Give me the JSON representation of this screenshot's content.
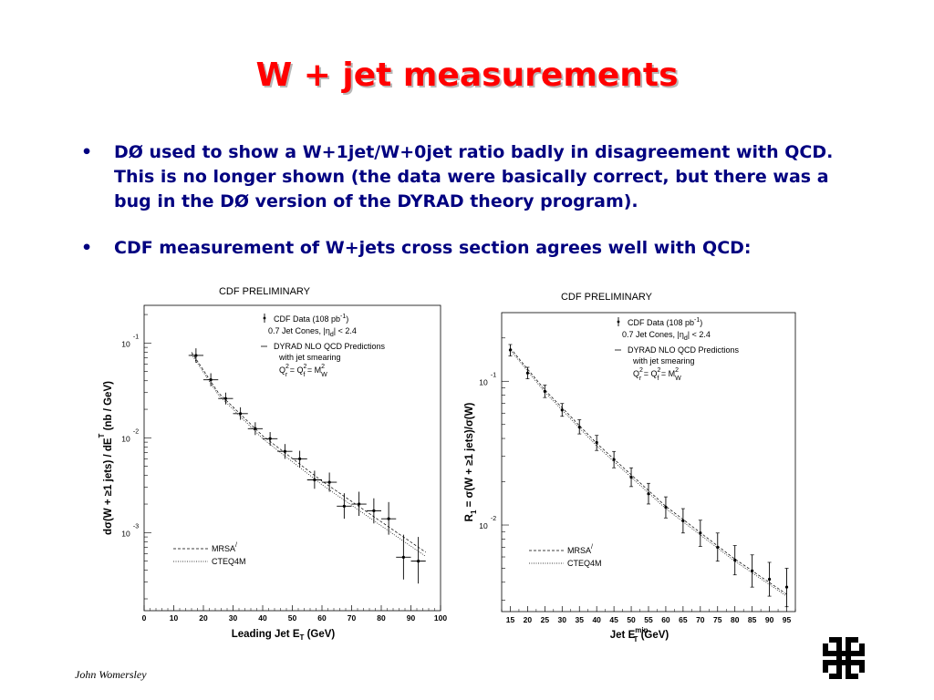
{
  "slide": {
    "title": "W + jet measurements",
    "bullets": [
      "DØ used to show a W+1jet/W+0jet ratio badly in disagreement with QCD.  This is no longer shown (the data were basically correct, but there was a bug in the DØ version of the DYRAD theory program).",
      "CDF measurement of W+jets cross section agrees well with QCD:"
    ],
    "bullet_symbol": "•",
    "footer": "John Womersley",
    "logo_icon": "fermilab-logo-icon",
    "title_color": "#ff0000",
    "text_color": "#000080"
  },
  "chart_data": [
    {
      "type": "scatter",
      "title": "CDF PRELIMINARY",
      "xlabel": "Leading Jet E",
      "xlabel_sub": "T",
      "xlabel_unit": "(GeV)",
      "ylabel": "dσ(W + ≥1 jets) / dE",
      "ylabel_sub": "T",
      "ylabel_unit": "(nb / GeV)",
      "log_y": true,
      "xlim": [
        0,
        100
      ],
      "ylim": [
        0.00015,
        0.25
      ],
      "x_ticks": [
        0,
        10,
        20,
        30,
        40,
        50,
        60,
        70,
        80,
        90,
        100
      ],
      "y_ticks": [
        {
          "value": 0.1,
          "base": "10",
          "exp": "-1"
        },
        {
          "value": 0.01,
          "base": "10",
          "exp": "-2"
        },
        {
          "value": 0.001,
          "base": "10",
          "exp": "-3"
        }
      ],
      "legend": {
        "data_label": "CDF Data (108 pb",
        "data_label_exp": "-1",
        "data_label_end": ")",
        "cones": "0.7 Jet Cones, |η",
        "cones_sub": "d",
        "cones_end": "| < 2.4",
        "theory": "DYRAD NLO QCD Predictions",
        "smearing": "with jet smearing",
        "scale": "Q",
        "scale_rest": "= Q",
        "scale_end": "= M",
        "scale_sub_r": "r",
        "scale_sub_f": "f",
        "scale_sub_w": "W",
        "scale_sup": "2"
      },
      "pdf_legend": [
        "MRSA",
        "CTEQ4M"
      ],
      "pdf_legend_prime": "/",
      "data": [
        {
          "x": 17.5,
          "y": 0.074,
          "xerr": 2.5,
          "ylo": 0.062,
          "yhi": 0.088
        },
        {
          "x": 22.5,
          "y": 0.041,
          "xerr": 2.5,
          "ylo": 0.035,
          "yhi": 0.048
        },
        {
          "x": 27.5,
          "y": 0.026,
          "xerr": 2.5,
          "ylo": 0.0225,
          "yhi": 0.03
        },
        {
          "x": 32.5,
          "y": 0.018,
          "xerr": 2.5,
          "ylo": 0.0155,
          "yhi": 0.021
        },
        {
          "x": 37.5,
          "y": 0.0125,
          "xerr": 2.5,
          "ylo": 0.0107,
          "yhi": 0.0146
        },
        {
          "x": 42.5,
          "y": 0.0098,
          "xerr": 2.5,
          "ylo": 0.0083,
          "yhi": 0.0115
        },
        {
          "x": 47.5,
          "y": 0.0072,
          "xerr": 2.5,
          "ylo": 0.006,
          "yhi": 0.0086
        },
        {
          "x": 52.5,
          "y": 0.006,
          "xerr": 2.5,
          "ylo": 0.0049,
          "yhi": 0.0073
        },
        {
          "x": 57.5,
          "y": 0.0036,
          "xerr": 2.5,
          "ylo": 0.0029,
          "yhi": 0.0045
        },
        {
          "x": 62.5,
          "y": 0.0034,
          "xerr": 2.5,
          "ylo": 0.0027,
          "yhi": 0.0043
        },
        {
          "x": 67.5,
          "y": 0.0019,
          "xerr": 2.5,
          "ylo": 0.0014,
          "yhi": 0.0026
        },
        {
          "x": 72.5,
          "y": 0.002,
          "xerr": 2.5,
          "ylo": 0.0015,
          "yhi": 0.0027
        },
        {
          "x": 77.5,
          "y": 0.0017,
          "xerr": 2.5,
          "ylo": 0.00125,
          "yhi": 0.0023
        },
        {
          "x": 82.5,
          "y": 0.0014,
          "xerr": 2.5,
          "ylo": 0.00095,
          "yhi": 0.0021
        },
        {
          "x": 87.5,
          "y": 0.00055,
          "xerr": 2.5,
          "ylo": 0.00032,
          "yhi": 0.00095
        },
        {
          "x": 92.5,
          "y": 0.0005,
          "xerr": 2.5,
          "ylo": 0.00029,
          "yhi": 0.0009
        }
      ],
      "theory_curves": [
        {
          "name": "MRSA",
          "style": "dashed",
          "x": [
            16,
            25,
            40,
            60,
            80,
            95
          ],
          "y": [
            0.08,
            0.03,
            0.0105,
            0.0035,
            0.0013,
            0.00062
          ]
        },
        {
          "name": "CTEQ4M",
          "style": "dotted",
          "x": [
            16,
            25,
            40,
            60,
            80,
            95
          ],
          "y": [
            0.076,
            0.0285,
            0.0098,
            0.0032,
            0.00118,
            0.00056
          ]
        }
      ]
    },
    {
      "type": "scatter",
      "title": "CDF PRELIMINARY",
      "xlabel": "Jet E",
      "xlabel_sub": "T",
      "xlabel_sup": "min",
      "xlabel_unit": "(GeV)",
      "ylabel": "R",
      "ylabel_sub": "1",
      "ylabel_rest": "= σ(W + ≥1 jets)/σ(W)",
      "log_y": true,
      "xlim": [
        12.5,
        97.5
      ],
      "ylim": [
        0.0025,
        0.3
      ],
      "x_ticks": [
        15,
        20,
        25,
        30,
        35,
        40,
        45,
        50,
        55,
        60,
        65,
        70,
        75,
        80,
        85,
        90,
        95
      ],
      "y_ticks": [
        {
          "value": 0.1,
          "base": "10",
          "exp": "-1"
        },
        {
          "value": 0.01,
          "base": "10",
          "exp": "-2"
        }
      ],
      "legend": {
        "data_label": "CDF Data (108 pb",
        "data_label_exp": "-1",
        "data_label_end": ")",
        "cones": "0.7 Jet Cones, |η",
        "cones_sub": "d",
        "cones_end": "| < 2.4",
        "theory": "DYRAD NLO QCD Predictions",
        "smearing": "with jet smearing",
        "scale": "Q",
        "scale_rest": "= Q",
        "scale_end": "= M",
        "scale_sub_r": "r",
        "scale_sub_f": "f",
        "scale_sub_w": "W",
        "scale_sup": "2"
      },
      "pdf_legend": [
        "MRSA",
        "CTEQ4M"
      ],
      "pdf_legend_prime": "/",
      "data": [
        {
          "x": 15,
          "y": 0.165,
          "ylo": 0.15,
          "yhi": 0.18
        },
        {
          "x": 20,
          "y": 0.114,
          "ylo": 0.104,
          "yhi": 0.125
        },
        {
          "x": 25,
          "y": 0.085,
          "ylo": 0.077,
          "yhi": 0.094
        },
        {
          "x": 30,
          "y": 0.063,
          "ylo": 0.057,
          "yhi": 0.07
        },
        {
          "x": 35,
          "y": 0.048,
          "ylo": 0.043,
          "yhi": 0.054
        },
        {
          "x": 40,
          "y": 0.0375,
          "ylo": 0.033,
          "yhi": 0.042
        },
        {
          "x": 45,
          "y": 0.0285,
          "ylo": 0.025,
          "yhi": 0.0325
        },
        {
          "x": 50,
          "y": 0.0215,
          "ylo": 0.0185,
          "yhi": 0.025
        },
        {
          "x": 55,
          "y": 0.0165,
          "ylo": 0.014,
          "yhi": 0.0195
        },
        {
          "x": 60,
          "y": 0.0133,
          "ylo": 0.0112,
          "yhi": 0.0157
        },
        {
          "x": 65,
          "y": 0.0107,
          "ylo": 0.0088,
          "yhi": 0.013
        },
        {
          "x": 70,
          "y": 0.0088,
          "ylo": 0.0071,
          "yhi": 0.0108
        },
        {
          "x": 75,
          "y": 0.007,
          "ylo": 0.0056,
          "yhi": 0.0088
        },
        {
          "x": 80,
          "y": 0.0057,
          "ylo": 0.0045,
          "yhi": 0.0072
        },
        {
          "x": 85,
          "y": 0.0048,
          "ylo": 0.0037,
          "yhi": 0.0062
        },
        {
          "x": 90,
          "y": 0.0042,
          "ylo": 0.0032,
          "yhi": 0.0055
        },
        {
          "x": 95,
          "y": 0.0037,
          "ylo": 0.0027,
          "yhi": 0.005
        }
      ],
      "theory_curves": [
        {
          "name": "MRSA",
          "style": "dashed",
          "x": [
            15,
            25,
            40,
            60,
            80,
            95
          ],
          "y": [
            0.17,
            0.087,
            0.037,
            0.0135,
            0.0058,
            0.0033
          ]
        },
        {
          "name": "CTEQ4M",
          "style": "dotted",
          "x": [
            15,
            25,
            40,
            60,
            80,
            95
          ],
          "y": [
            0.165,
            0.084,
            0.0355,
            0.013,
            0.0056,
            0.0032
          ]
        }
      ]
    }
  ]
}
